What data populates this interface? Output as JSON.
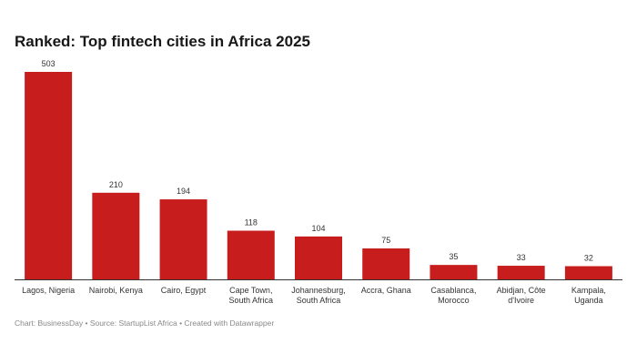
{
  "chart_data": {
    "type": "bar",
    "title": "Ranked: Top fintech cities in Africa 2025",
    "categories": [
      [
        "Lagos, Nigeria"
      ],
      [
        "Nairobi, Kenya"
      ],
      [
        "Cairo, Egypt"
      ],
      [
        "Cape Town,",
        "South Africa"
      ],
      [
        "Johannesburg,",
        "South Africa"
      ],
      [
        "Accra, Ghana"
      ],
      [
        "Casablanca,",
        "Morocco"
      ],
      [
        "Abidjan, Côte",
        "d'Ivoire"
      ],
      [
        "Kampala,",
        "Uganda"
      ]
    ],
    "values": [
      503,
      210,
      194,
      118,
      104,
      75,
      35,
      33,
      32
    ],
    "ylim": [
      0,
      503
    ],
    "grid": false,
    "bar_color": "#c71e1d",
    "footer": "Chart: BusinessDay • Source: StartupList Africa • Created with Datawrapper"
  }
}
